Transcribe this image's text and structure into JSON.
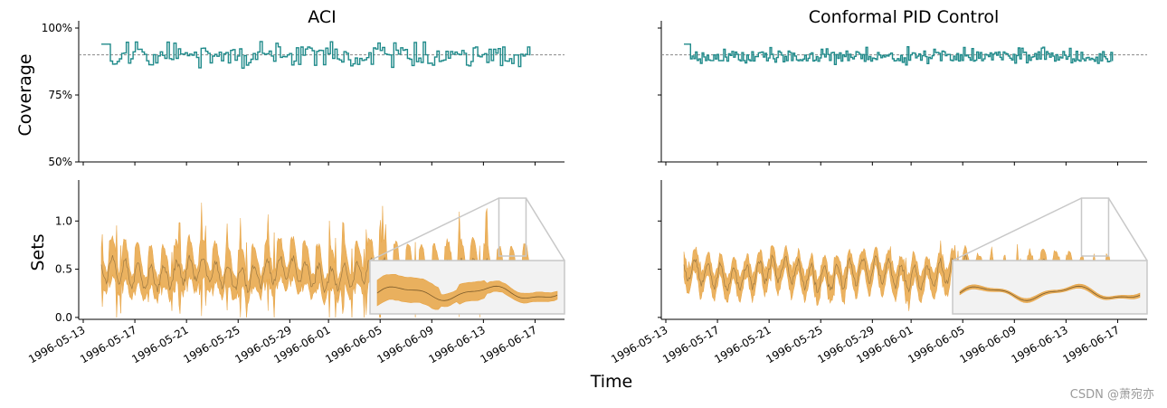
{
  "chart_data": [
    {
      "type": "line",
      "panel": "top-left",
      "title": "ACI",
      "ylabel": "Coverage",
      "yticks": [
        "50%",
        "75%",
        "100%"
      ],
      "ylim": [
        0.5,
        1.0
      ],
      "target_line": 0.9,
      "x_range_days": [
        0,
        36
      ],
      "series": [
        {
          "name": "coverage",
          "color": "#1f8a8a",
          "mean": 0.895,
          "min": 0.85,
          "max": 0.95,
          "start_day": 1.4,
          "end_day": 34.6
        }
      ]
    },
    {
      "type": "line",
      "panel": "top-right",
      "title": "Conformal PID Control",
      "yticks": [
        "",
        "",
        ""
      ],
      "ylim": [
        0.5,
        1.0
      ],
      "target_line": 0.9,
      "x_range_days": [
        0,
        36
      ],
      "series": [
        {
          "name": "coverage",
          "color": "#1f8a8a",
          "mean": 0.895,
          "min": 0.86,
          "max": 0.93,
          "start_day": 1.4,
          "end_day": 34.6
        }
      ]
    },
    {
      "type": "area",
      "panel": "bottom-left",
      "ylabel": "Sets",
      "yticks": [
        "0.0",
        "0.5",
        "1.0"
      ],
      "ylim": [
        -0.02,
        1.35
      ],
      "x_range_days": [
        0,
        36
      ],
      "xticks": [
        "1996-05-13",
        "1996-05-17",
        "1996-05-21",
        "1996-05-25",
        "1996-05-29",
        "1996-06-01",
        "1996-06-05",
        "1996-06-09",
        "1996-06-13",
        "1996-06-17"
      ],
      "series": [
        {
          "name": "prediction set",
          "color": "#e8a444",
          "center_mean": 0.45,
          "width_range": [
            0.15,
            1.2
          ],
          "start_day": 1.4,
          "end_day": 34.6
        }
      ],
      "inset": {
        "zoom_days": [
          32.2,
          34.3
        ],
        "zoom_ylim": [
          0.0,
          1.2
        ]
      }
    },
    {
      "type": "area",
      "panel": "bottom-right",
      "yticks": [
        "",
        "",
        ""
      ],
      "ylim": [
        -0.02,
        1.35
      ],
      "x_range_days": [
        0,
        36
      ],
      "xticks": [
        "1996-05-13",
        "1996-05-17",
        "1996-05-21",
        "1996-05-25",
        "1996-05-29",
        "1996-06-01",
        "1996-06-05",
        "1996-06-09",
        "1996-06-13",
        "1996-06-17"
      ],
      "series": [
        {
          "name": "prediction set",
          "color": "#e8a444",
          "center_mean": 0.45,
          "width_range": [
            0.05,
            0.8
          ],
          "start_day": 1.4,
          "end_day": 34.6
        }
      ],
      "inset": {
        "zoom_days": [
          32.2,
          34.3
        ],
        "zoom_ylim": [
          0.0,
          1.2
        ]
      }
    }
  ],
  "figure": {
    "xlabel": "Time"
  },
  "watermark": "CSDN @萧宛亦"
}
